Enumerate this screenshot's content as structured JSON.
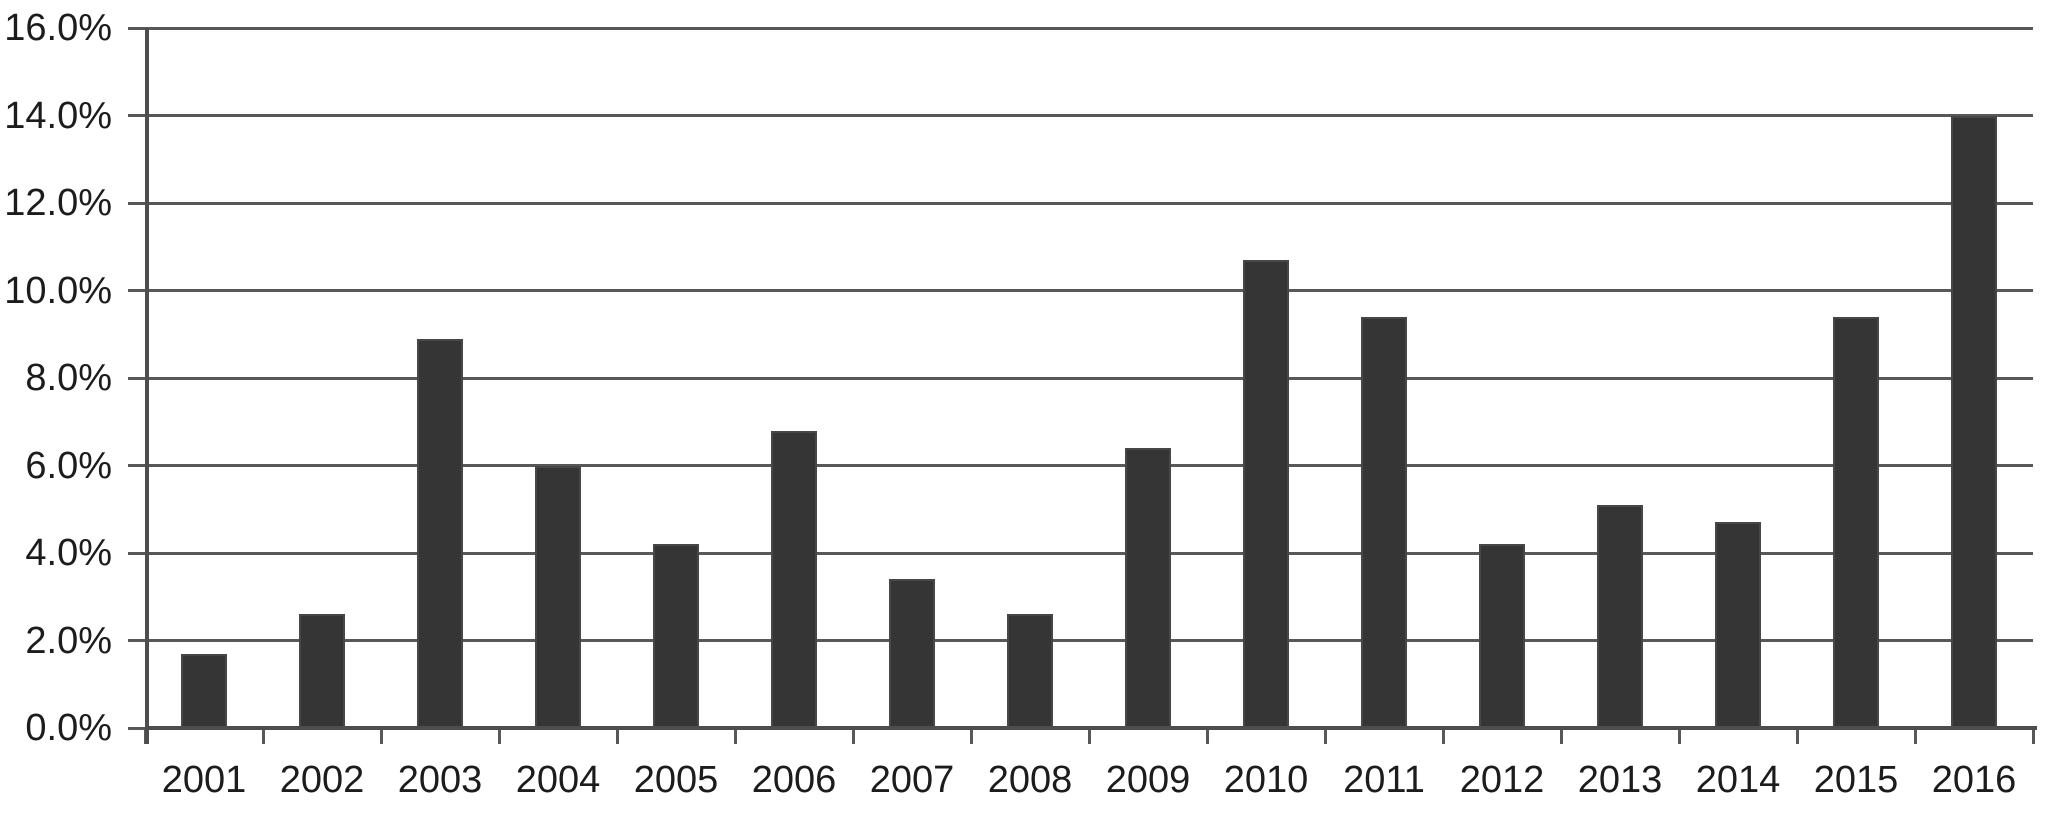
{
  "chart_data": {
    "type": "bar",
    "title": "",
    "xlabel": "",
    "ylabel": "",
    "categories": [
      "2001",
      "2002",
      "2003",
      "2004",
      "2005",
      "2006",
      "2007",
      "2008",
      "2009",
      "2010",
      "2011",
      "2012",
      "2013",
      "2014",
      "2015",
      "2016"
    ],
    "values": [
      1.7,
      2.6,
      8.9,
      6.0,
      4.2,
      6.8,
      3.4,
      2.6,
      6.4,
      10.7,
      9.4,
      4.2,
      5.1,
      4.7,
      9.4,
      14.0
    ],
    "value_unit": "%",
    "ylim": [
      0,
      16
    ],
    "ytick_step": 2,
    "ytick_labels": [
      "0.0%",
      "2.0%",
      "4.0%",
      "6.0%",
      "8.0%",
      "10.0%",
      "12.0%",
      "14.0%",
      "16.0%"
    ],
    "grid": true,
    "legend": false,
    "legend_position": "none",
    "colors": {
      "bar": "#353535",
      "bar_border": "#474747",
      "gridline": "#585858",
      "axis": "#4d4d4d",
      "text": "#1c1c1c",
      "background": "#ffffff"
    }
  }
}
